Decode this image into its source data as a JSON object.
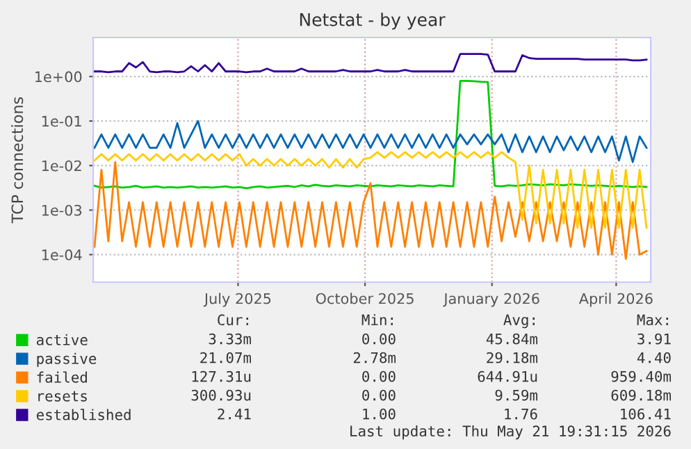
{
  "chart_data": {
    "type": "line",
    "title": "Netstat - by year",
    "ylabel": "TCP connections",
    "x": [
      "2025-03-19",
      "2025-03-24",
      "2025-03-29",
      "2025-04-03",
      "2025-04-08",
      "2025-04-13",
      "2025-04-18",
      "2025-04-23",
      "2025-04-28",
      "2025-05-03",
      "2025-05-08",
      "2025-05-13",
      "2025-05-18",
      "2025-05-23",
      "2025-05-28",
      "2025-06-02",
      "2025-06-07",
      "2025-06-12",
      "2025-06-17",
      "2025-06-22",
      "2025-06-27",
      "2025-07-02",
      "2025-07-07",
      "2025-07-12",
      "2025-07-17",
      "2025-07-22",
      "2025-07-27",
      "2025-08-01",
      "2025-08-06",
      "2025-08-11",
      "2025-08-16",
      "2025-08-21",
      "2025-08-26",
      "2025-08-31",
      "2025-09-05",
      "2025-09-10",
      "2025-09-15",
      "2025-09-20",
      "2025-09-25",
      "2025-09-30",
      "2025-10-05",
      "2025-10-10",
      "2025-10-15",
      "2025-10-20",
      "2025-10-25",
      "2025-10-30",
      "2025-11-04",
      "2025-11-09",
      "2025-11-14",
      "2025-11-19",
      "2025-11-24",
      "2025-11-29",
      "2025-12-04",
      "2025-12-09",
      "2025-12-14",
      "2025-12-19",
      "2025-12-24",
      "2025-12-29",
      "2026-01-03",
      "2026-01-08",
      "2026-01-13",
      "2026-01-18",
      "2026-01-23",
      "2026-01-28",
      "2026-02-02",
      "2026-02-07",
      "2026-02-12",
      "2026-02-17",
      "2026-02-22",
      "2026-02-27",
      "2026-03-04",
      "2026-03-09",
      "2026-03-14",
      "2026-03-19",
      "2026-03-24",
      "2026-03-29",
      "2026-04-03",
      "2026-04-08",
      "2026-04-13",
      "2026-04-18",
      "2026-04-23"
    ],
    "series": [
      {
        "name": "active",
        "color": "#00cc00",
        "values": [
          0.0035,
          0.0032,
          0.0033,
          0.0034,
          0.0032,
          0.0033,
          0.0035,
          0.0032,
          0.0033,
          0.0034,
          0.0032,
          0.0033,
          0.0032,
          0.0033,
          0.0034,
          0.0032,
          0.0033,
          0.0032,
          0.0033,
          0.0034,
          0.0032,
          0.0033,
          0.0031,
          0.0033,
          0.0034,
          0.0032,
          0.0033,
          0.0034,
          0.0035,
          0.0033,
          0.0036,
          0.0034,
          0.0037,
          0.0035,
          0.0034,
          0.0036,
          0.0035,
          0.0034,
          0.0036,
          0.0035,
          0.0034,
          0.0036,
          0.0035,
          0.0034,
          0.0036,
          0.0035,
          0.0034,
          0.0036,
          0.0035,
          0.0034,
          0.0036,
          0.0035,
          0.0034,
          0.8,
          0.8,
          0.78,
          0.76,
          0.75,
          0.0035,
          0.0034,
          0.0036,
          0.0035,
          0.0036,
          0.0038,
          0.0037,
          0.0036,
          0.0038,
          0.0037,
          0.0036,
          0.0038,
          0.0037,
          0.0036,
          0.0035,
          0.0036,
          0.0035,
          0.0034,
          0.0035,
          0.0034,
          0.0033,
          0.0034,
          0.0033
        ]
      },
      {
        "name": "passive",
        "color": "#0066b3",
        "values": [
          0.025,
          0.05,
          0.025,
          0.05,
          0.025,
          0.05,
          0.025,
          0.05,
          0.025,
          0.025,
          0.05,
          0.025,
          0.09,
          0.025,
          0.05,
          0.1,
          0.025,
          0.05,
          0.025,
          0.05,
          0.025,
          0.05,
          0.025,
          0.05,
          0.025,
          0.05,
          0.025,
          0.05,
          0.025,
          0.05,
          0.025,
          0.05,
          0.025,
          0.05,
          0.025,
          0.05,
          0.025,
          0.05,
          0.025,
          0.05,
          0.025,
          0.05,
          0.025,
          0.05,
          0.025,
          0.05,
          0.025,
          0.05,
          0.025,
          0.05,
          0.025,
          0.05,
          0.025,
          0.05,
          0.03,
          0.05,
          0.03,
          0.05,
          0.03,
          0.05,
          0.02,
          0.05,
          0.02,
          0.045,
          0.02,
          0.045,
          0.02,
          0.045,
          0.022,
          0.045,
          0.022,
          0.045,
          0.02,
          0.045,
          0.02,
          0.045,
          0.013,
          0.045,
          0.012,
          0.045,
          0.025
        ]
      },
      {
        "name": "failed",
        "color": "#ff8000",
        "values": [
          0.00015,
          0.008,
          0.0002,
          0.012,
          0.0002,
          0.0015,
          0.00015,
          0.0015,
          0.00015,
          0.0015,
          0.00015,
          0.0015,
          0.00015,
          0.0015,
          0.00015,
          0.0015,
          0.00015,
          0.0015,
          0.00015,
          0.0015,
          0.00015,
          0.0015,
          0.00015,
          0.0015,
          0.00015,
          0.0015,
          0.00015,
          0.0015,
          0.00015,
          0.0015,
          0.00015,
          0.0015,
          0.00015,
          0.0015,
          0.00015,
          0.0015,
          0.00015,
          0.0015,
          0.00015,
          0.0015,
          0.004,
          0.00015,
          0.0015,
          0.00015,
          0.0015,
          0.00015,
          0.0015,
          0.00015,
          0.0015,
          0.00015,
          0.0015,
          0.00015,
          0.0015,
          0.00015,
          0.0015,
          0.00015,
          0.0015,
          0.00015,
          0.002,
          0.0002,
          0.0015,
          0.00025,
          0.0015,
          0.0002,
          0.0015,
          0.0002,
          0.0015,
          0.0002,
          0.0015,
          0.00015,
          0.0015,
          0.00015,
          0.0015,
          0.0001,
          0.0015,
          0.0001,
          0.0015,
          8e-05,
          0.0015,
          0.0001,
          0.00012
        ]
      },
      {
        "name": "resets",
        "color": "#ffcc00",
        "values": [
          0.013,
          0.018,
          0.013,
          0.018,
          0.013,
          0.018,
          0.013,
          0.018,
          0.013,
          0.018,
          0.013,
          0.018,
          0.013,
          0.018,
          0.013,
          0.018,
          0.013,
          0.018,
          0.013,
          0.018,
          0.013,
          0.018,
          0.01,
          0.014,
          0.01,
          0.014,
          0.01,
          0.014,
          0.01,
          0.014,
          0.01,
          0.014,
          0.01,
          0.014,
          0.009,
          0.014,
          0.009,
          0.014,
          0.009,
          0.014,
          0.015,
          0.02,
          0.015,
          0.02,
          0.015,
          0.02,
          0.015,
          0.02,
          0.015,
          0.02,
          0.015,
          0.02,
          0.015,
          0.02,
          0.015,
          0.02,
          0.015,
          0.02,
          0.015,
          0.02,
          0.015,
          0.012,
          0.0006,
          0.01,
          0.0005,
          0.008,
          0.0005,
          0.008,
          0.0005,
          0.008,
          0.0004,
          0.008,
          0.0004,
          0.008,
          0.0004,
          0.008,
          0.0004,
          0.008,
          0.0004,
          0.008,
          0.0004
        ]
      },
      {
        "name": "established",
        "color": "#330099",
        "values": [
          1.3,
          1.3,
          1.25,
          1.3,
          1.3,
          2.0,
          1.6,
          2.1,
          1.3,
          1.25,
          1.3,
          1.3,
          1.25,
          1.3,
          1.7,
          1.3,
          1.8,
          1.3,
          2.0,
          1.3,
          1.3,
          1.3,
          1.25,
          1.3,
          1.3,
          1.5,
          1.3,
          1.3,
          1.3,
          1.3,
          1.5,
          1.3,
          1.3,
          1.3,
          1.3,
          1.3,
          1.4,
          1.3,
          1.3,
          1.3,
          1.3,
          1.4,
          1.3,
          1.3,
          1.3,
          1.4,
          1.3,
          1.3,
          1.3,
          1.3,
          1.3,
          1.3,
          1.3,
          3.2,
          3.2,
          3.2,
          3.2,
          3.1,
          1.3,
          1.3,
          1.3,
          1.3,
          3.0,
          2.6,
          2.5,
          2.5,
          2.5,
          2.5,
          2.5,
          2.5,
          2.5,
          2.4,
          2.4,
          2.4,
          2.4,
          2.4,
          2.4,
          2.4,
          2.3,
          2.3,
          2.4
        ]
      }
    ],
    "log": "y",
    "ylim": [
      2.4e-05,
      7.5
    ],
    "yticks": [
      {
        "value": 0.0001,
        "label": "1e-04"
      },
      {
        "value": 0.001,
        "label": "1e-03"
      },
      {
        "value": 0.01,
        "label": "1e-02"
      },
      {
        "value": 0.1,
        "label": "1e-01"
      },
      {
        "value": 1,
        "label": "1e+00"
      }
    ],
    "xlim": [
      "2025-03-18",
      "2026-04-26"
    ],
    "xticks": [
      {
        "value": "2025-07-01",
        "label": "July 2025"
      },
      {
        "value": "2025-10-01",
        "label": "October 2025"
      },
      {
        "value": "2026-01-01",
        "label": "January 2026"
      },
      {
        "value": "2026-04-01",
        "label": "April 2026"
      }
    ],
    "grid": true,
    "legend": "bottom",
    "annotations": [
      "Cur:",
      "Min:",
      "Avg:",
      "Max:",
      "3.33m",
      "0.00",
      "45.84m",
      "3.91",
      "21.07m",
      "2.78m",
      "29.18m",
      "4.40",
      "127.31u",
      "0.00",
      "644.91u",
      "959.40m",
      "300.93u",
      "0.00",
      "9.59m",
      "609.18m",
      "2.41",
      "1.00",
      "1.76",
      "106.41",
      "Last update: Thu May 21 19:31:15 2026"
    ]
  }
}
